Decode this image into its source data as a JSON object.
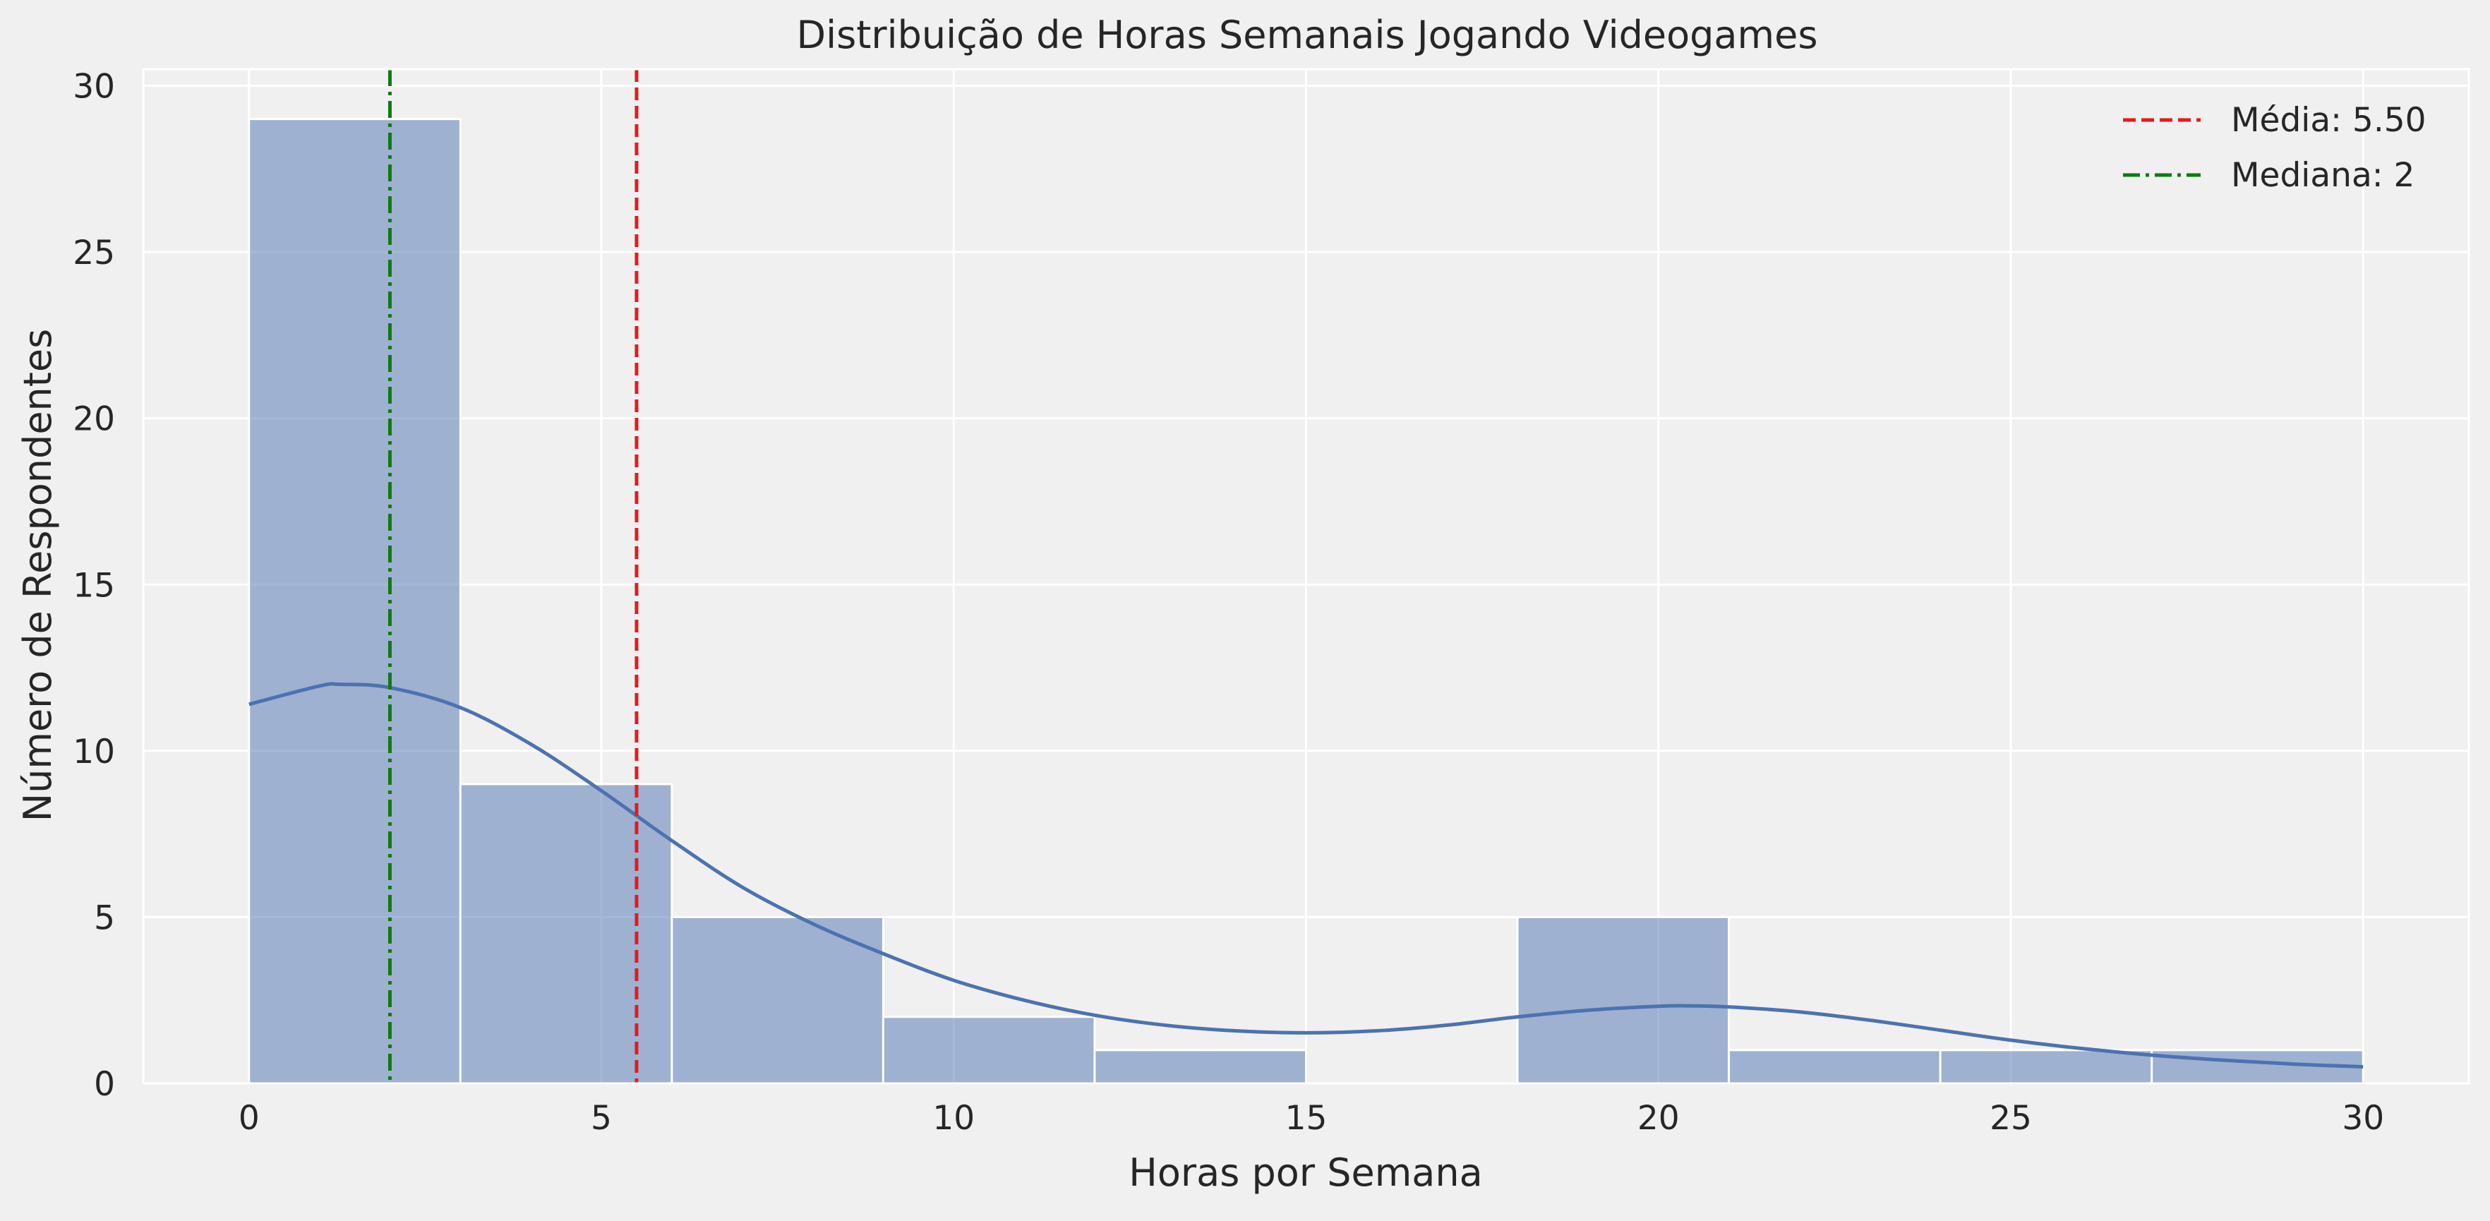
{
  "chart_data": {
    "type": "histogram",
    "title": "Distribuição de Horas Semanais Jogando Videogames",
    "xlabel": "Horas por Semana",
    "ylabel": "Número de Respondentes",
    "xlim": [
      -1.5,
      31.5
    ],
    "ylim": [
      0,
      30.5
    ],
    "xticks": [
      0,
      5,
      10,
      15,
      20,
      25,
      30
    ],
    "yticks": [
      0,
      5,
      10,
      15,
      20,
      25,
      30
    ],
    "grid": true,
    "legend_position": "top-right",
    "bins": [
      {
        "x0": 0,
        "x1": 3,
        "count": 29
      },
      {
        "x0": 3,
        "x1": 6,
        "count": 9
      },
      {
        "x0": 6,
        "x1": 9,
        "count": 5
      },
      {
        "x0": 9,
        "x1": 12,
        "count": 2
      },
      {
        "x0": 12,
        "x1": 15,
        "count": 1
      },
      {
        "x0": 15,
        "x1": 18,
        "count": 0
      },
      {
        "x0": 18,
        "x1": 21,
        "count": 5
      },
      {
        "x0": 21,
        "x1": 24,
        "count": 1
      },
      {
        "x0": 24,
        "x1": 27,
        "count": 1
      },
      {
        "x0": 27,
        "x1": 30,
        "count": 1
      }
    ],
    "kde": {
      "x": [
        0,
        1,
        1.3,
        2,
        3,
        4,
        5,
        6,
        7,
        8,
        9,
        10,
        11,
        12,
        13,
        14,
        15,
        16,
        17,
        18,
        19,
        20,
        20.5,
        21,
        22,
        23,
        24,
        25,
        26,
        27,
        28,
        29,
        30
      ],
      "y": [
        11.4,
        11.95,
        12.0,
        11.9,
        11.3,
        10.2,
        8.8,
        7.3,
        5.9,
        4.8,
        3.9,
        3.1,
        2.5,
        2.05,
        1.75,
        1.58,
        1.52,
        1.58,
        1.75,
        2.0,
        2.2,
        2.32,
        2.33,
        2.3,
        2.15,
        1.9,
        1.6,
        1.3,
        1.05,
        0.85,
        0.7,
        0.58,
        0.5
      ]
    },
    "vlines": [
      {
        "label": "Média: 5.50",
        "x": 5.5,
        "color": "#e41a1c",
        "style": "dashed"
      },
      {
        "label": "Mediana: 2",
        "x": 2,
        "color": "#117a11",
        "style": "dashdot"
      }
    ],
    "colors": {
      "bar_fill": "#4c72b0",
      "kde_line": "#4c72b0",
      "background": "#f0f0f0",
      "grid": "#ffffff"
    }
  }
}
